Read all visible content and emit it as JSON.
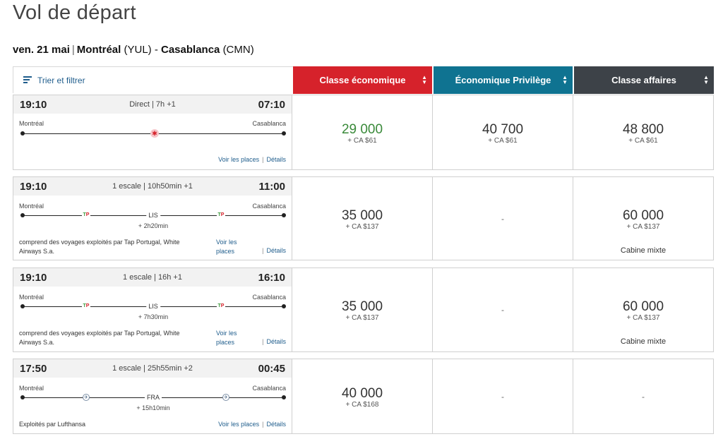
{
  "page": {
    "title": "Vol de départ",
    "date": "ven. 21 mai",
    "origin": "Montréal",
    "origin_code": "(YUL)",
    "destination": "Casablanca",
    "destination_code": "(CMN)"
  },
  "filter": {
    "label": "Trier et filtrer"
  },
  "classes": [
    {
      "label": "Classe économique",
      "color": "#d6222b"
    },
    {
      "label": "Économique Privilège",
      "color": "#0f7391"
    },
    {
      "label": "Classe affaires",
      "color": "#3d4248"
    }
  ],
  "links": {
    "seats": "Voir les places",
    "seats_l1": "Voir les",
    "seats_l2": "places",
    "details": "Détails",
    "separator": "|"
  },
  "flights": [
    {
      "depart": "19:10",
      "arrive": "07:10",
      "info": "Direct | 7h +1",
      "from": "Montréal",
      "to": "Casablanca",
      "prices": [
        {
          "points": "29 000",
          "tax": "+ CA $61"
        },
        {
          "points": "40 700",
          "tax": "+ CA $61"
        },
        {
          "points": "48 800",
          "tax": "+ CA $61"
        }
      ]
    },
    {
      "depart": "19:10",
      "arrive": "11:00",
      "info": "1 escale | 10h50min +1",
      "from": "Montréal",
      "to": "Casablanca",
      "stop": "LIS",
      "layover": "+ 2h20min",
      "operators_l1": "comprend des voyages exploités par Tap Portugal, White",
      "operators_l2": "Airways S.a.",
      "prices": [
        {
          "points": "35 000",
          "tax": "+ CA $137"
        },
        {
          "dash": "-"
        },
        {
          "points": "60 000",
          "tax": "+ CA $137",
          "note": "Cabine mixte"
        }
      ]
    },
    {
      "depart": "19:10",
      "arrive": "16:10",
      "info": "1 escale | 16h +1",
      "from": "Montréal",
      "to": "Casablanca",
      "stop": "LIS",
      "layover": "+ 7h30min",
      "operators_l1": "comprend des voyages exploités par Tap Portugal, White",
      "operators_l2": "Airways S.a.",
      "prices": [
        {
          "points": "35 000",
          "tax": "+ CA $137"
        },
        {
          "dash": "-"
        },
        {
          "points": "60 000",
          "tax": "+ CA $137",
          "note": "Cabine mixte"
        }
      ]
    },
    {
      "depart": "17:50",
      "arrive": "00:45",
      "info": "1 escale | 25h55min +2",
      "from": "Montréal",
      "to": "Casablanca",
      "stop": "FRA",
      "layover": "+ 15h10min",
      "operators_l1": "Exploités par Lufthansa",
      "prices": [
        {
          "points": "40 000",
          "tax": "+ CA $168"
        },
        {
          "dash": "-"
        },
        {
          "dash": "-"
        }
      ]
    }
  ]
}
